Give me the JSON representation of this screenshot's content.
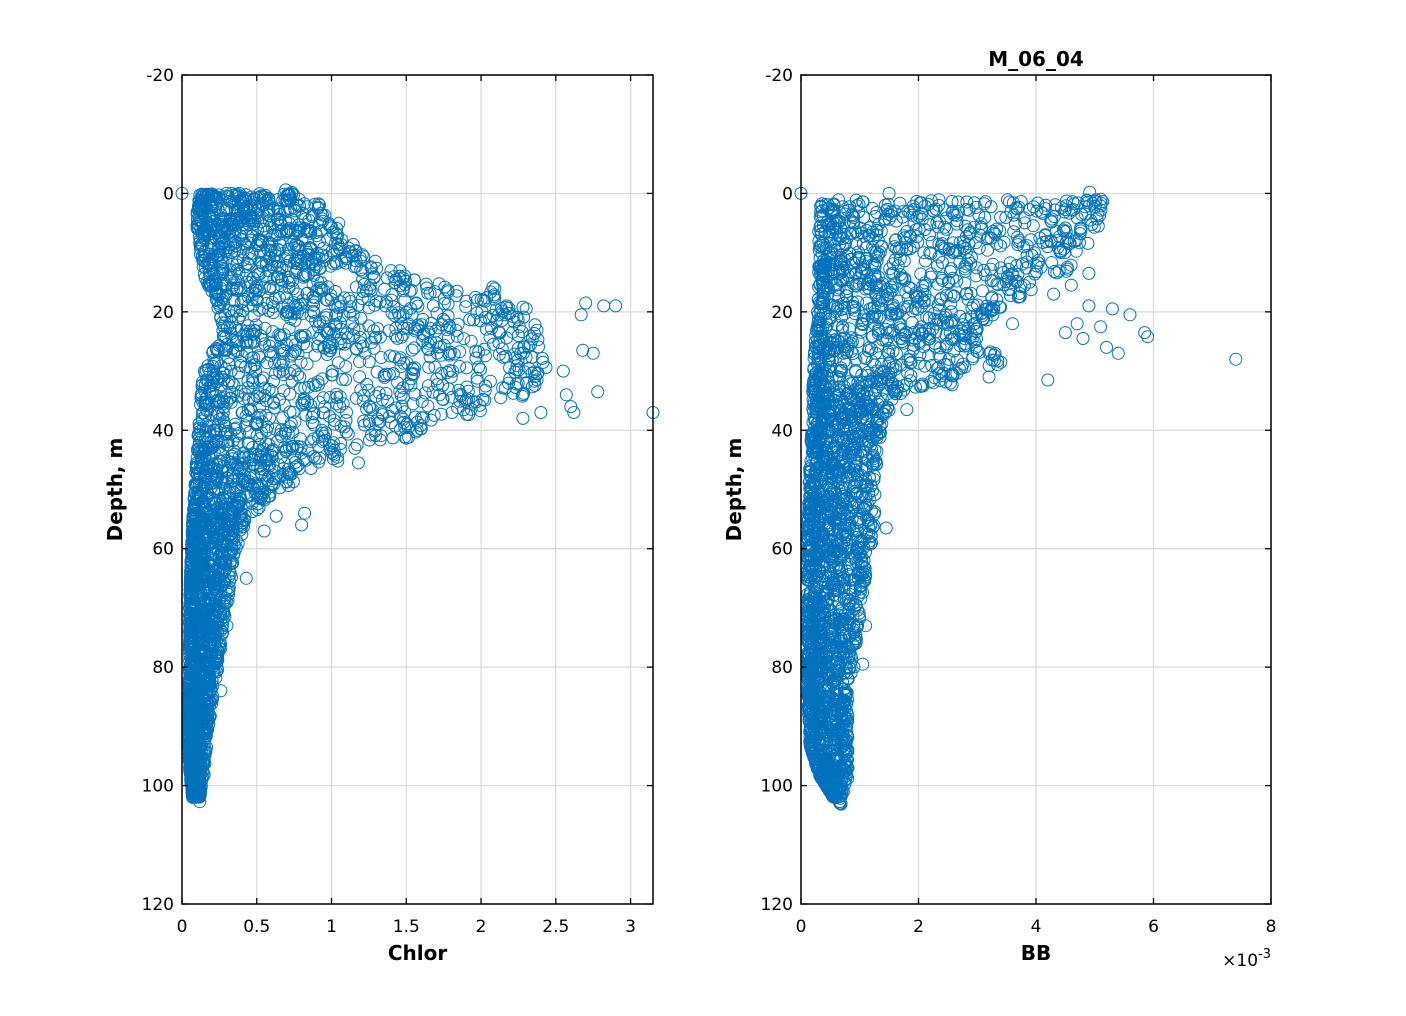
{
  "colors": {
    "marker": "#0072bd",
    "grid": "#d9d9d9",
    "axis": "#000000"
  },
  "chart_data": [
    {
      "type": "scatter",
      "title": "",
      "xlabel": "Chlor",
      "ylabel": "Depth, m",
      "xlim": [
        0,
        3.15
      ],
      "ylim": [
        -20,
        120
      ],
      "y_reversed": true,
      "grid": true,
      "marker": "open-circle",
      "xticks": [
        0,
        0.5,
        1,
        1.5,
        2,
        2.5,
        3
      ],
      "xtick_labels": [
        "0",
        "0.5",
        "1",
        "1.5",
        "2",
        "2.5",
        "3"
      ],
      "yticks": [
        -20,
        0,
        20,
        40,
        60,
        80,
        100,
        120
      ],
      "ytick_labels": [
        "-20",
        "0",
        "20",
        "40",
        "60",
        "80",
        "100",
        "120"
      ],
      "profile": [
        {
          "depth": 0,
          "xmin": 0.12,
          "xmax": 0.75
        },
        {
          "depth": 3,
          "xmin": 0.1,
          "xmax": 0.95
        },
        {
          "depth": 6,
          "xmin": 0.1,
          "xmax": 1.05
        },
        {
          "depth": 10,
          "xmin": 0.12,
          "xmax": 1.2
        },
        {
          "depth": 14,
          "xmin": 0.15,
          "xmax": 1.5
        },
        {
          "depth": 17,
          "xmin": 0.2,
          "xmax": 2.1
        },
        {
          "depth": 20,
          "xmin": 0.25,
          "xmax": 2.35
        },
        {
          "depth": 24,
          "xmin": 0.28,
          "xmax": 2.4
        },
        {
          "depth": 27,
          "xmin": 0.2,
          "xmax": 2.4
        },
        {
          "depth": 30,
          "xmin": 0.15,
          "xmax": 2.45
        },
        {
          "depth": 33,
          "xmin": 0.13,
          "xmax": 2.35
        },
        {
          "depth": 36,
          "xmin": 0.12,
          "xmax": 2.0
        },
        {
          "depth": 40,
          "xmin": 0.11,
          "xmax": 1.6
        },
        {
          "depth": 44,
          "xmin": 0.1,
          "xmax": 1.05
        },
        {
          "depth": 48,
          "xmin": 0.09,
          "xmax": 0.75
        },
        {
          "depth": 52,
          "xmin": 0.08,
          "xmax": 0.55
        },
        {
          "depth": 56,
          "xmin": 0.07,
          "xmax": 0.42
        },
        {
          "depth": 62,
          "xmin": 0.06,
          "xmax": 0.35
        },
        {
          "depth": 70,
          "xmin": 0.05,
          "xmax": 0.3
        },
        {
          "depth": 80,
          "xmin": 0.05,
          "xmax": 0.24
        },
        {
          "depth": 90,
          "xmin": 0.04,
          "xmax": 0.18
        },
        {
          "depth": 97,
          "xmin": 0.05,
          "xmax": 0.15
        },
        {
          "depth": 102,
          "xmin": 0.07,
          "xmax": 0.12
        }
      ],
      "sample_count": 3200,
      "outliers": [
        {
          "x": 0.0,
          "y": 0
        },
        {
          "x": 3.15,
          "y": 37
        },
        {
          "x": 2.82,
          "y": 19
        },
        {
          "x": 2.9,
          "y": 19
        },
        {
          "x": 2.67,
          "y": 20.5
        },
        {
          "x": 2.7,
          "y": 18.5
        },
        {
          "x": 2.75,
          "y": 27
        },
        {
          "x": 2.68,
          "y": 26.5
        },
        {
          "x": 2.78,
          "y": 33.5
        },
        {
          "x": 2.6,
          "y": 36
        },
        {
          "x": 2.62,
          "y": 37
        },
        {
          "x": 2.55,
          "y": 30
        },
        {
          "x": 2.57,
          "y": 34
        },
        {
          "x": 2.4,
          "y": 37
        },
        {
          "x": 2.28,
          "y": 38
        },
        {
          "x": 1.1,
          "y": 11
        },
        {
          "x": 0.82,
          "y": 54
        },
        {
          "x": 0.8,
          "y": 56
        },
        {
          "x": 0.55,
          "y": 57
        },
        {
          "x": 0.63,
          "y": 54.5
        },
        {
          "x": 1.18,
          "y": 45.5
        },
        {
          "x": 0.43,
          "y": 65
        },
        {
          "x": 0.3,
          "y": 73
        },
        {
          "x": 0.26,
          "y": 84
        },
        {
          "x": 0.09,
          "y": 102
        }
      ]
    },
    {
      "type": "scatter",
      "title": "M_06_04",
      "xlabel": "BB",
      "ylabel": "Depth, m",
      "x_multiplier_label": "×10",
      "x_multiplier_exponent": "-3",
      "xlim": [
        0,
        0.008
      ],
      "ylim": [
        -20,
        120
      ],
      "y_reversed": true,
      "grid": true,
      "marker": "open-circle",
      "xticks": [
        0,
        0.002,
        0.004,
        0.006,
        0.008
      ],
      "xtick_labels": [
        "0",
        "2",
        "4",
        "6",
        "8"
      ],
      "yticks": [
        -20,
        0,
        20,
        40,
        60,
        80,
        100,
        120
      ],
      "ytick_labels": [
        "-20",
        "0",
        "20",
        "40",
        "60",
        "80",
        "100",
        "120"
      ],
      "profile": [
        {
          "depth": 1,
          "xmin": 0.00035,
          "xmax": 0.0052
        },
        {
          "depth": 5,
          "xmin": 0.0003,
          "xmax": 0.0051
        },
        {
          "depth": 8,
          "xmin": 0.0003,
          "xmax": 0.0049
        },
        {
          "depth": 12,
          "xmin": 0.0003,
          "xmax": 0.0046
        },
        {
          "depth": 16,
          "xmin": 0.0003,
          "xmax": 0.004
        },
        {
          "depth": 20,
          "xmin": 0.00028,
          "xmax": 0.0033
        },
        {
          "depth": 24,
          "xmin": 0.00025,
          "xmax": 0.003
        },
        {
          "depth": 28,
          "xmin": 0.00022,
          "xmax": 0.0034
        },
        {
          "depth": 31,
          "xmin": 0.0002,
          "xmax": 0.0026
        },
        {
          "depth": 34,
          "xmin": 0.0002,
          "xmax": 0.0017
        },
        {
          "depth": 38,
          "xmin": 0.0002,
          "xmax": 0.0014
        },
        {
          "depth": 45,
          "xmin": 0.00015,
          "xmax": 0.0013
        },
        {
          "depth": 55,
          "xmin": 0.00012,
          "xmax": 0.00125
        },
        {
          "depth": 65,
          "xmin": 0.0001,
          "xmax": 0.0011
        },
        {
          "depth": 75,
          "xmin": 0.0001,
          "xmax": 0.00095
        },
        {
          "depth": 85,
          "xmin": 0.00012,
          "xmax": 0.0008
        },
        {
          "depth": 93,
          "xmin": 0.00015,
          "xmax": 0.0008
        },
        {
          "depth": 98,
          "xmin": 0.0003,
          "xmax": 0.0008
        },
        {
          "depth": 102,
          "xmin": 0.00055,
          "xmax": 0.0007
        }
      ],
      "sample_count": 2900,
      "outliers": [
        {
          "x": 0.0,
          "y": 0
        },
        {
          "x": 0.0074,
          "y": 28
        },
        {
          "x": 0.00585,
          "y": 23.5
        },
        {
          "x": 0.0059,
          "y": 24.2
        },
        {
          "x": 0.0056,
          "y": 20.5
        },
        {
          "x": 0.0053,
          "y": 19.5
        },
        {
          "x": 0.0054,
          "y": 27
        },
        {
          "x": 0.0052,
          "y": 26
        },
        {
          "x": 0.0051,
          "y": 22.5
        },
        {
          "x": 0.0049,
          "y": 19
        },
        {
          "x": 0.0047,
          "y": 22
        },
        {
          "x": 0.0048,
          "y": 24.5
        },
        {
          "x": 0.0045,
          "y": 23.5
        },
        {
          "x": 0.0042,
          "y": 31.5
        },
        {
          "x": 0.0043,
          "y": 17
        },
        {
          "x": 0.0046,
          "y": 15.5
        },
        {
          "x": 0.0049,
          "y": 13.5
        },
        {
          "x": 0.0037,
          "y": 17.5
        },
        {
          "x": 0.0036,
          "y": 22
        },
        {
          "x": 0.0034,
          "y": 28.5
        },
        {
          "x": 0.0032,
          "y": 31
        },
        {
          "x": 0.0018,
          "y": 36.5
        },
        {
          "x": 0.0015,
          "y": 0
        },
        {
          "x": 0.00145,
          "y": 56.5
        },
        {
          "x": 0.0012,
          "y": 59
        },
        {
          "x": 0.0011,
          "y": 73
        },
        {
          "x": 0.00105,
          "y": 79.5
        },
        {
          "x": 0.0009,
          "y": 80
        },
        {
          "x": 0.0008,
          "y": 97
        },
        {
          "x": 0.0006,
          "y": 102
        }
      ]
    }
  ]
}
